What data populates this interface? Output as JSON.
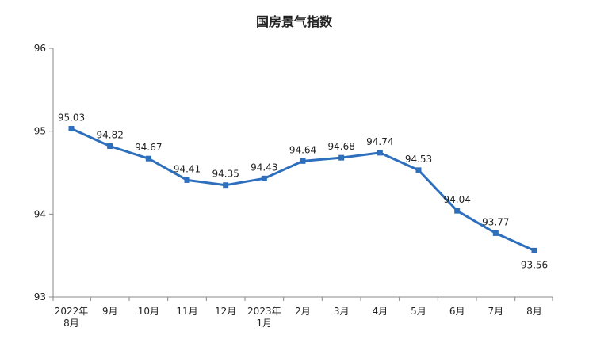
{
  "chart_data": {
    "type": "line",
    "title": "国房景气指数",
    "xlabel": "",
    "ylabel": "",
    "ylim": [
      93,
      96
    ],
    "yticks": [
      "93",
      "94",
      "95",
      "96"
    ],
    "categories": [
      [
        "2022年",
        "8月"
      ],
      [
        "9月"
      ],
      [
        "10月"
      ],
      [
        "11月"
      ],
      [
        "12月"
      ],
      [
        "2023年",
        "1月"
      ],
      [
        "2月"
      ],
      [
        "3月"
      ],
      [
        "4月"
      ],
      [
        "5月"
      ],
      [
        "6月"
      ],
      [
        "7月"
      ],
      [
        "8月"
      ]
    ],
    "series": [
      {
        "values": [
          95.03,
          94.82,
          94.67,
          94.41,
          94.35,
          94.43,
          94.64,
          94.68,
          94.74,
          94.53,
          94.04,
          93.77,
          93.56
        ],
        "labels": [
          "95.03",
          "94.82",
          "94.67",
          "94.41",
          "94.35",
          "94.43",
          "94.64",
          "94.68",
          "94.74",
          "94.53",
          "94.04",
          "93.77",
          "93.56"
        ],
        "color": "#2e6fbd"
      }
    ],
    "grid": false,
    "legend": "none"
  }
}
